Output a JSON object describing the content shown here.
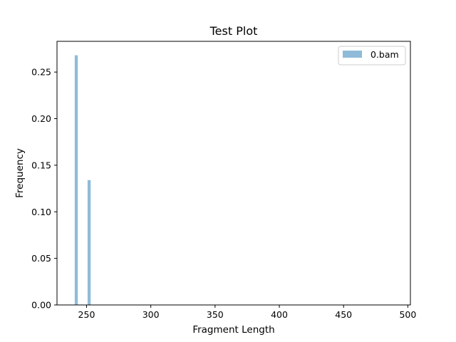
{
  "chart_data": {
    "type": "bar",
    "title": "Test Plot",
    "xlabel": "Fragment Length",
    "ylabel": "Frequency",
    "xlim": [
      227,
      502
    ],
    "ylim": [
      0,
      0.283
    ],
    "xticks": [
      250,
      300,
      350,
      400,
      450,
      500
    ],
    "xtick_labels": [
      "250",
      "300",
      "350",
      "400",
      "450",
      "500"
    ],
    "yticks": [
      0,
      0.05,
      0.1,
      0.15,
      0.2,
      0.25
    ],
    "ytick_labels": [
      "0.00",
      "0.05",
      "0.10",
      "0.15",
      "0.20",
      "0.25"
    ],
    "bar_width": 2.4,
    "grid": false,
    "legend_position": "top-right",
    "series": [
      {
        "name": "0.bam",
        "color": "#8fbbd9",
        "x": [
          242,
          252
        ],
        "values": [
          0.268,
          0.134
        ]
      }
    ]
  }
}
